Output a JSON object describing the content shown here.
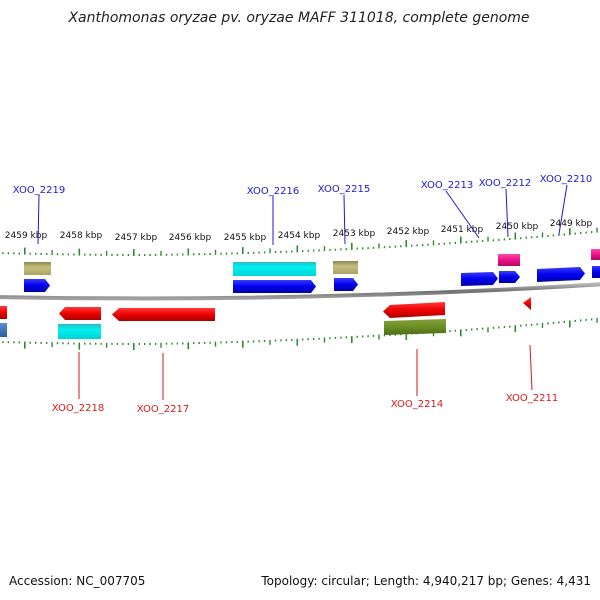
{
  "title": "Xanthomonas oryzae pv. oryzae MAFF 311018, complete genome",
  "footer": {
    "accession": "Accession: NC_007705",
    "topology": "Topology: circular; Length: 4,940,217 bp; Genes: 4,431"
  },
  "scale_labels": [
    "2459 kbp",
    "2458 kbp",
    "2457 kbp",
    "2456 kbp",
    "2455 kbp",
    "2454 kbp",
    "2453 kbp",
    "2452 kbp",
    "2451 kbp",
    "2450 kbp",
    "2449 kbp"
  ],
  "gene_labels_top": [
    "XOO_2219",
    "XOO_2216",
    "XOO_2215",
    "XOO_2213",
    "XOO_2212",
    "XOO_2210"
  ],
  "gene_labels_bottom": [
    "XOO_2218",
    "XOO_2217",
    "XOO_2214",
    "XOO_2211"
  ],
  "colors": {
    "forward_cds": "#0000ee",
    "reverse_cds": "#ee0000",
    "cyan_feature": "#00e5e5",
    "khaki_feature": "#b5b06a",
    "olive_feature": "#6b8e23",
    "pink_feature": "#ee1188",
    "backbone": "#808080",
    "tick": "#2e8b2e",
    "label_line_blue": "#1a1ad6",
    "label_line_red": "#d61a1a"
  }
}
